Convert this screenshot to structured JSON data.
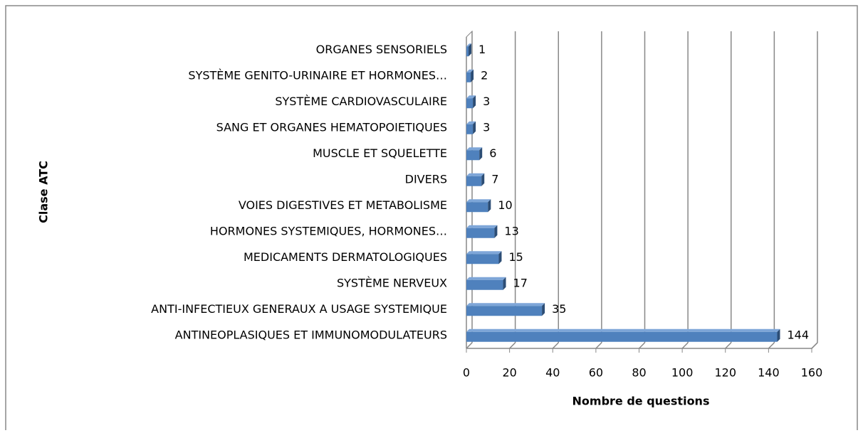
{
  "chart_data": {
    "type": "bar",
    "orientation": "horizontal",
    "categories": [
      "ORGANES SENSORIELS",
      "SYSTÈME GENITO-URINAIRE ET HORMONES…",
      "SYSTÈME CARDIOVASCULAIRE",
      "SANG ET ORGANES HEMATOPOIETIQUES",
      "MUSCLE ET SQUELETTE",
      "DIVERS",
      "VOIES DIGESTIVES ET METABOLISME",
      "HORMONES SYSTEMIQUES, HORMONES…",
      "MEDICAMENTS DERMATOLOGIQUES",
      "SYSTÈME NERVEUX",
      "ANTI-INFECTIEUX GENERAUX A USAGE SYSTEMIQUE",
      "ANTINEOPLASIQUES ET IMMUNOMODULATEURS"
    ],
    "values": [
      1,
      2,
      3,
      3,
      6,
      7,
      10,
      13,
      15,
      17,
      35,
      144
    ],
    "color": "#4f81bd",
    "xlim": [
      0,
      160
    ],
    "xticks": [
      0,
      20,
      40,
      60,
      80,
      100,
      120,
      140,
      160
    ],
    "x_label": "Nombre de questions",
    "y_label": "Clase ATC",
    "grid": true
  }
}
